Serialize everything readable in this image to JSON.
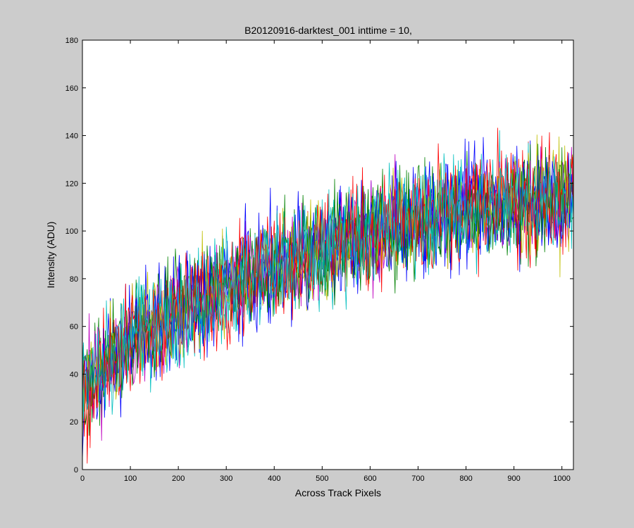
{
  "chart_data": {
    "type": "line",
    "title": "B20120916-darktest_001 inttime = 10,",
    "xlabel": "Across Track Pixels",
    "ylabel": "Intensity (ADU)",
    "xlim": [
      0,
      1024
    ],
    "ylim": [
      0,
      180
    ],
    "xticks": [
      0,
      100,
      200,
      300,
      400,
      500,
      600,
      700,
      800,
      900,
      1000
    ],
    "yticks": [
      0,
      20,
      40,
      60,
      80,
      100,
      120,
      140,
      160,
      180
    ],
    "grid": false,
    "background_color": "#ffffff",
    "figure_color": "#cccccc",
    "series": [
      {
        "color": "#0000ff"
      },
      {
        "color": "#008000"
      },
      {
        "color": "#ff0000"
      },
      {
        "color": "#00bfbf"
      },
      {
        "color": "#bf00bf"
      },
      {
        "color": "#bfbf00"
      },
      {
        "color": "#0000ff"
      },
      {
        "color": "#008000"
      },
      {
        "color": "#ff0000"
      },
      {
        "color": "#00bfbf"
      }
    ],
    "trend": {
      "x": [
        0,
        50,
        100,
        200,
        300,
        400,
        500,
        600,
        700,
        800,
        900,
        1000,
        1024
      ],
      "y": [
        30,
        45,
        55,
        66,
        76,
        86,
        93,
        99,
        105,
        109,
        112,
        114,
        115
      ]
    },
    "noise_spread_adu": 11
  }
}
